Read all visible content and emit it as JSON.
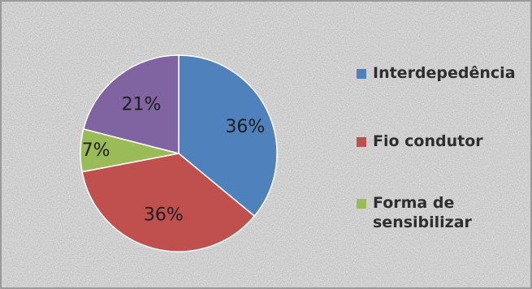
{
  "chart_data": {
    "type": "pie",
    "title": "",
    "categories": [
      "Interdepedência",
      "Fio condutor",
      "Forma de sensibilizar",
      ""
    ],
    "values": [
      36,
      36,
      7,
      21
    ],
    "labels": [
      "36%",
      "36%",
      "7%",
      "21%"
    ],
    "colors": [
      "#4f81bd",
      "#c0504d",
      "#9bbb59",
      "#8064a2"
    ],
    "legend": {
      "placement": "right",
      "entries": [
        {
          "label": "Interdepedência",
          "color": "#4f81bd"
        },
        {
          "label": "Fio condutor",
          "color": "#c0504d"
        },
        {
          "label": "Forma de sensibilizar",
          "color": "#9bbb59"
        }
      ]
    },
    "start_angle_deg": 0,
    "direction": "clockwise"
  }
}
